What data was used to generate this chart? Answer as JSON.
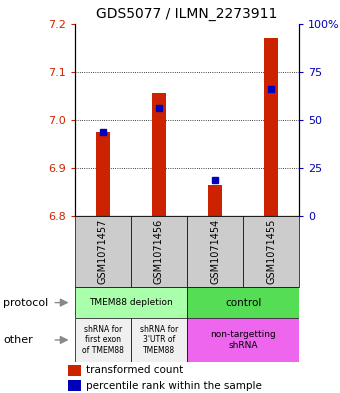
{
  "title": "GDS5077 / ILMN_2273911",
  "samples": [
    "GSM1071457",
    "GSM1071456",
    "GSM1071454",
    "GSM1071455"
  ],
  "red_values": [
    6.975,
    7.055,
    6.865,
    7.17
  ],
  "blue_values": [
    6.975,
    7.025,
    6.875,
    7.065
  ],
  "ylim": [
    6.8,
    7.2
  ],
  "yticks_left": [
    6.8,
    6.9,
    7.0,
    7.1,
    7.2
  ],
  "yticks_right": [
    0,
    25,
    50,
    75,
    100
  ],
  "ylabel_left_color": "#cc2200",
  "ylabel_right_color": "#0000bb",
  "bar_color": "#cc2200",
  "dot_color": "#0000bb",
  "protocol_labels": [
    "TMEM88 depletion",
    "control"
  ],
  "protocol_color_left": "#aaffaa",
  "protocol_color_right": "#55dd55",
  "other_label0": "shRNA for\nfirst exon\nof TMEM88",
  "other_label1": "shRNA for\n3'UTR of\nTMEM88",
  "other_label2": "non-targetting\nshRNA",
  "other_color_left": "#f0f0f0",
  "other_color_right": "#ee66ee",
  "legend_red": "transformed count",
  "legend_blue": "percentile rank within the sample",
  "base_value": 6.8,
  "bar_width": 0.25,
  "sample_box_color": "#cccccc",
  "protocol_arrow_color": "#888888",
  "title_fontsize": 10,
  "tick_fontsize": 8,
  "label_fontsize": 8,
  "table_fontsize": 7,
  "cell_fontsize": 6.5,
  "legend_fontsize": 7.5
}
